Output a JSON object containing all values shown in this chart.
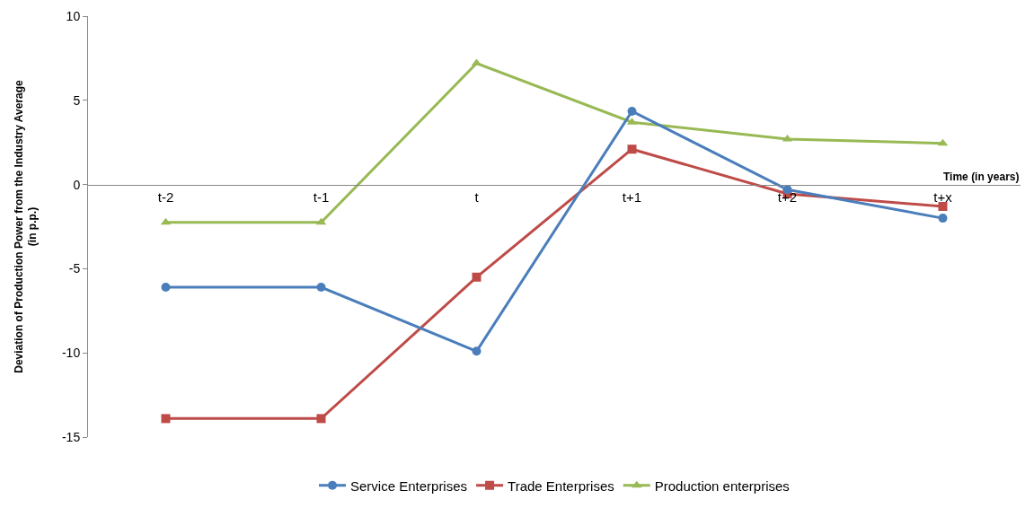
{
  "chart_data": {
    "type": "line",
    "xlabel": "Time (in years)",
    "ylabel": "Deviation of Production Power from the Industry Average\n(in p.p.)",
    "categories": [
      "t-2",
      "t-1",
      "t",
      "t+1",
      "t+2",
      "t+x"
    ],
    "series": [
      {
        "name": "Service Enterprises",
        "color": "#4a7ebb",
        "marker": "circle",
        "values": [
          -6.1,
          -6.1,
          -9.9,
          4.35,
          -0.3,
          -2.0
        ]
      },
      {
        "name": "Trade Enterprises",
        "color": "#be4b48",
        "marker": "square",
        "values": [
          -13.9,
          -13.9,
          -5.5,
          2.1,
          -0.55,
          -1.3
        ]
      },
      {
        "name": "Production enterprises",
        "color": "#98b954",
        "marker": "triangle",
        "values": [
          -2.25,
          -2.25,
          7.2,
          3.7,
          2.7,
          2.45
        ]
      }
    ],
    "ylim": [
      -15,
      10
    ],
    "yticks": [
      -15,
      -10,
      -5,
      0,
      5,
      10
    ],
    "legend": "bottom",
    "line_style": "solid"
  }
}
